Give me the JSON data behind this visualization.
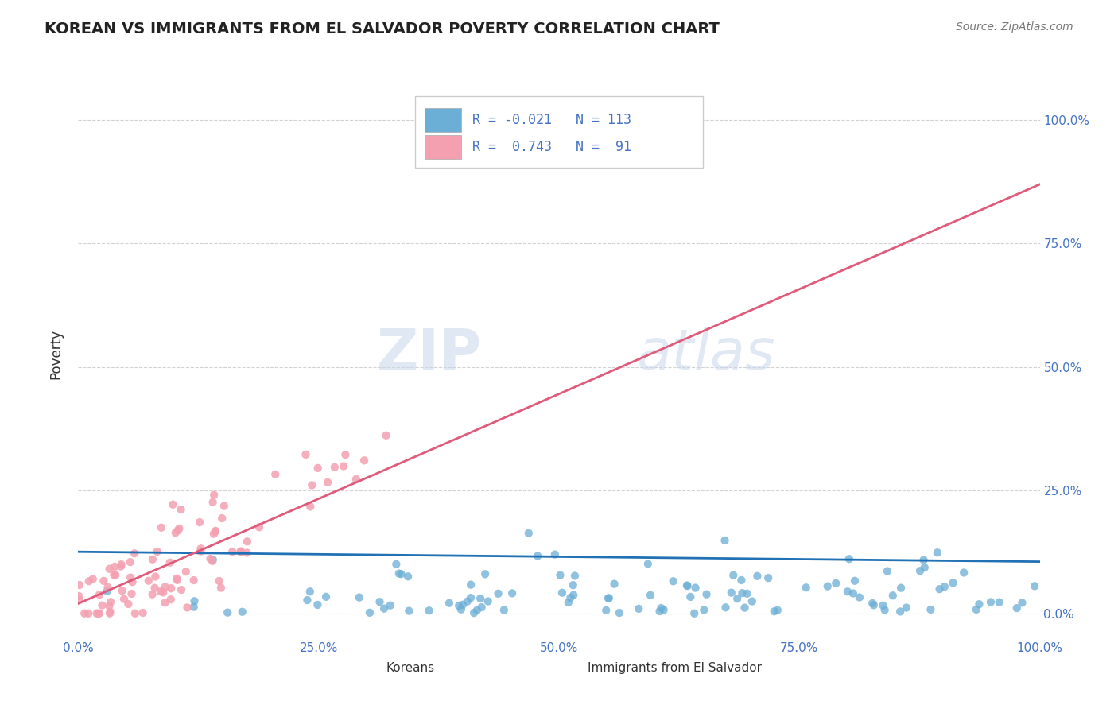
{
  "title": "KOREAN VS IMMIGRANTS FROM EL SALVADOR POVERTY CORRELATION CHART",
  "source": "Source: ZipAtlas.com",
  "ylabel": "Poverty",
  "xlabel": "",
  "xlim": [
    0.0,
    1.0
  ],
  "ylim": [
    -0.05,
    1.1
  ],
  "background_color": "#ffffff",
  "watermark_zip": "ZIP",
  "watermark_atlas": "atlas",
  "blue_color": "#6baed6",
  "pink_color": "#f4a0b0",
  "blue_line_color": "#2171b5",
  "pink_line_color": "#e05a7a",
  "tick_color": "#4472c4",
  "grid_color": "#c0c0c0",
  "seed_blue": 42,
  "seed_pink": 77,
  "n_blue": 113,
  "n_pink": 91,
  "r_blue": -0.021,
  "r_pink": 0.743
}
